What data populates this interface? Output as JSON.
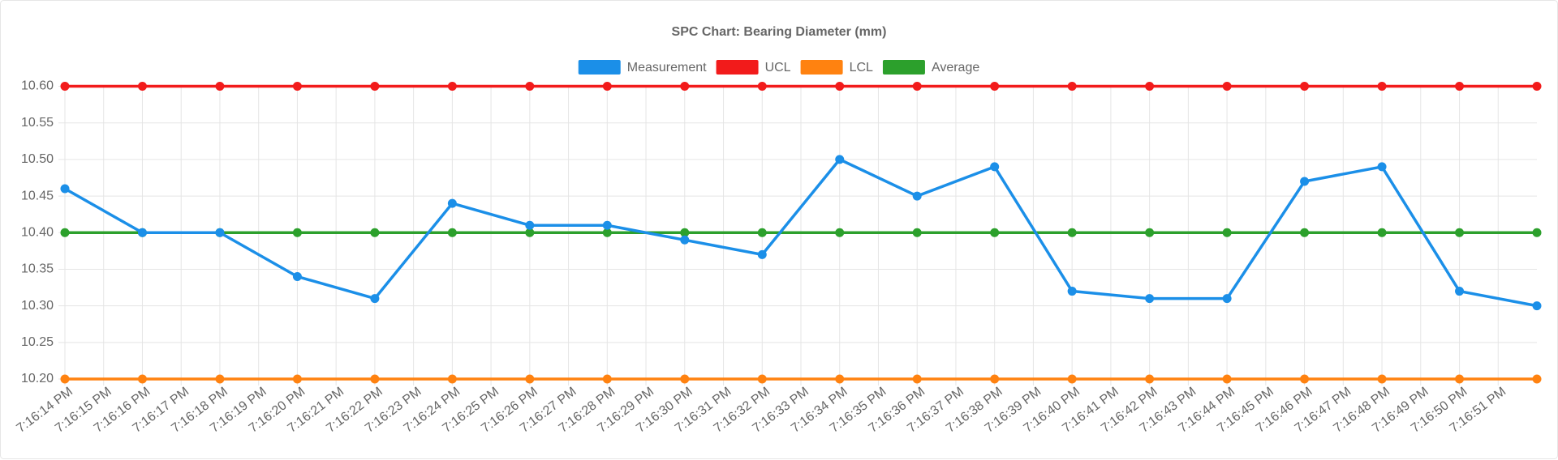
{
  "chart_data": {
    "type": "line",
    "title": "SPC Chart: Bearing Diameter (mm)",
    "x": [
      "7:16:14 PM",
      "7:16:16 PM",
      "7:16:18 PM",
      "7:16:20 PM",
      "7:16:22 PM",
      "7:16:24 PM",
      "7:16:26 PM",
      "7:16:28 PM",
      "7:16:30 PM",
      "7:16:32 PM",
      "7:16:34 PM",
      "7:16:36 PM",
      "7:16:38 PM",
      "7:16:40 PM",
      "7:16:42 PM",
      "7:16:44 PM",
      "7:16:46 PM",
      "7:16:48 PM",
      "7:16:50 PM",
      "7:16:52 PM"
    ],
    "series": [
      {
        "name": "Measurement",
        "color": "#1b8fe8",
        "values": [
          10.46,
          10.4,
          10.4,
          10.34,
          10.31,
          10.44,
          10.41,
          10.41,
          10.39,
          10.37,
          10.5,
          10.45,
          10.49,
          10.32,
          10.31,
          10.31,
          10.47,
          10.49,
          10.32,
          10.3
        ]
      },
      {
        "name": "UCL",
        "color": "#f21b1b",
        "values": [
          10.6,
          10.6,
          10.6,
          10.6,
          10.6,
          10.6,
          10.6,
          10.6,
          10.6,
          10.6,
          10.6,
          10.6,
          10.6,
          10.6,
          10.6,
          10.6,
          10.6,
          10.6,
          10.6,
          10.6
        ]
      },
      {
        "name": "LCL",
        "color": "#ff8210",
        "values": [
          10.2,
          10.2,
          10.2,
          10.2,
          10.2,
          10.2,
          10.2,
          10.2,
          10.2,
          10.2,
          10.2,
          10.2,
          10.2,
          10.2,
          10.2,
          10.2,
          10.2,
          10.2,
          10.2,
          10.2
        ]
      },
      {
        "name": "Average",
        "color": "#2ca02c",
        "values": [
          10.4,
          10.4,
          10.4,
          10.4,
          10.4,
          10.4,
          10.4,
          10.4,
          10.4,
          10.4,
          10.4,
          10.4,
          10.4,
          10.4,
          10.4,
          10.4,
          10.4,
          10.4,
          10.4,
          10.4
        ]
      }
    ],
    "xlim": [
      "7:16:14 PM",
      "7:16:52 PM"
    ],
    "xticks": [
      "7:16:14 PM",
      "7:16:15 PM",
      "7:16:16 PM",
      "7:16:17 PM",
      "7:16:18 PM",
      "7:16:19 PM",
      "7:16:20 PM",
      "7:16:21 PM",
      "7:16:22 PM",
      "7:16:23 PM",
      "7:16:24 PM",
      "7:16:25 PM",
      "7:16:26 PM",
      "7:16:27 PM",
      "7:16:28 PM",
      "7:16:29 PM",
      "7:16:30 PM",
      "7:16:31 PM",
      "7:16:32 PM",
      "7:16:33 PM",
      "7:16:34 PM",
      "7:16:35 PM",
      "7:16:36 PM",
      "7:16:37 PM",
      "7:16:38 PM",
      "7:16:39 PM",
      "7:16:40 PM",
      "7:16:41 PM",
      "7:16:42 PM",
      "7:16:43 PM",
      "7:16:44 PM",
      "7:16:45 PM",
      "7:16:46 PM",
      "7:16:47 PM",
      "7:16:48 PM",
      "7:16:49 PM",
      "7:16:50 PM",
      "7:16:51 PM"
    ],
    "ylim": [
      10.2,
      10.6
    ],
    "yticks": [
      {
        "value": 10.2,
        "label": "10.20"
      },
      10.25,
      {
        "value": 10.3,
        "label": "10.30"
      },
      10.35,
      {
        "value": 10.4,
        "label": "10.40"
      },
      10.45,
      {
        "value": 10.5,
        "label": "10.50"
      },
      10.55,
      {
        "value": 10.6,
        "label": "10.60"
      }
    ],
    "grid": true,
    "legend": "top"
  }
}
